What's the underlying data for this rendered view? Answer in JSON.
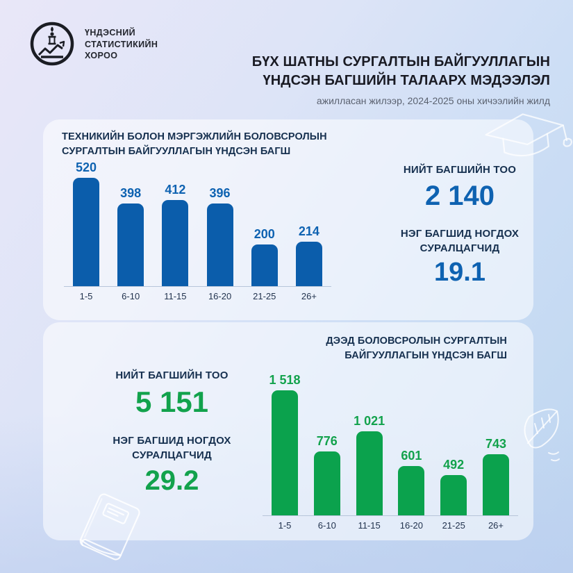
{
  "brand": {
    "org_name_lines": [
      "ҮНДЭСНИЙ",
      "СТАТИСТИКИЙН",
      "ХОРОО"
    ]
  },
  "header": {
    "title_lines": [
      "БҮХ ШАТНЫ СУРГАЛТЫН БАЙГУУЛЛАГЫН",
      "ҮНДСЭН БАГШИЙН ТАЛААРХ МЭДЭЭЛЭЛ"
    ],
    "subtitle": "ажилласан жилээр, 2024-2025 оны хичээлийн жилд"
  },
  "colors": {
    "blue_bar": "#0b5dab",
    "blue_text": "#0e62b1",
    "green_bar": "#0ba24d",
    "green_text": "#12a24c",
    "navy_heading": "#16304f",
    "card_bg": "rgba(255,255,255,0.55)",
    "axis": "#b7c5d9"
  },
  "sections": [
    {
      "title_lines": [
        "ТЕХНИКИЙН БОЛОН МЭРГЭЖЛИЙН БОЛОВСРОЛЫН",
        "СУРГАЛТЫН БАЙГУУЛЛАГЫН ҮНДСЭН БАГШ"
      ],
      "stats": [
        {
          "label_lines": [
            "НИЙТ БАГШИЙН ТОО"
          ],
          "value": "2 140"
        },
        {
          "label_lines": [
            "НЭГ БАГШИД НОГДОХ",
            "СУРАЛЦАГЧИД"
          ],
          "value": "19.1"
        }
      ]
    },
    {
      "title_lines": [
        "ДЭЭД БОЛОВСРОЛЫН СУРГАЛТЫН",
        "БАЙГУУЛЛАГЫН ҮНДСЭН БАГШ"
      ],
      "stats": [
        {
          "label_lines": [
            "НИЙТ БАГШИЙН ТОО"
          ],
          "value": "5 151"
        },
        {
          "label_lines": [
            "НЭГ БАГШИД НОГДОХ",
            "СУРАЛЦАГЧИД"
          ],
          "value": "29.2"
        }
      ]
    }
  ],
  "chart_data": [
    {
      "type": "bar",
      "title": "ТЕХНИКИЙН БОЛОН МЭРГЭЖЛИЙН БОЛОВСРОЛЫН СУРГАЛТЫН БАЙГУУЛЛАГЫН ҮНДСЭН БАГШ",
      "categories": [
        "1-5",
        "6-10",
        "11-15",
        "16-20",
        "21-25",
        "26+"
      ],
      "values": [
        520,
        398,
        412,
        396,
        200,
        214
      ],
      "value_labels": [
        "520",
        "398",
        "412",
        "396",
        "200",
        "214"
      ],
      "bar_color": "#0b5dab",
      "label_color": "#0e62b1",
      "ylim": [
        0,
        560
      ],
      "grid": false,
      "legend": false
    },
    {
      "type": "bar",
      "title": "ДЭЭД БОЛОВСРОЛЫН СУРГАЛТЫН БАЙГУУЛЛАГЫН ҮНДСЭН БАГШ",
      "categories": [
        "1-5",
        "6-10",
        "11-15",
        "16-20",
        "21-25",
        "26+"
      ],
      "values": [
        1518,
        776,
        1021,
        601,
        492,
        743
      ],
      "value_labels": [
        "1 518",
        "776",
        "1 021",
        "601",
        "492",
        "743"
      ],
      "bar_color": "#0ba24d",
      "label_color": "#12a24c",
      "ylim": [
        0,
        1600
      ],
      "grid": false,
      "legend": false
    }
  ]
}
